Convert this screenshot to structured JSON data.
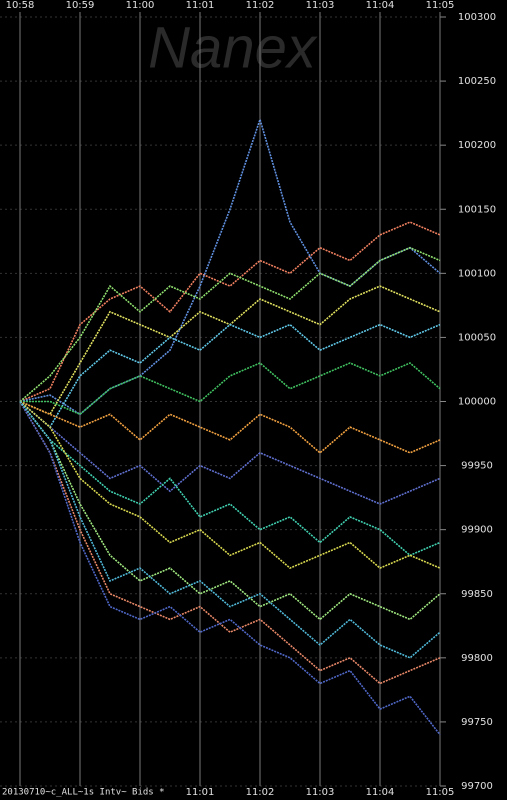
{
  "chart_data": {
    "type": "line",
    "watermark": "Nanex",
    "footer": "20130710~c_ALL~1s Intv~ Bids *",
    "x": [
      658,
      658.5,
      659,
      659.5,
      660,
      660.5,
      661,
      661.5,
      662,
      662.5,
      663,
      663.5,
      664,
      664.5,
      665
    ],
    "xlim": [
      658,
      665
    ],
    "xticks": [
      {
        "value": 658,
        "label": "10:58"
      },
      {
        "value": 659,
        "label": "10:59"
      },
      {
        "value": 660,
        "label": "11:00"
      },
      {
        "value": 661,
        "label": "11:01"
      },
      {
        "value": 662,
        "label": "11:02"
      },
      {
        "value": 663,
        "label": "11:03"
      },
      {
        "value": 664,
        "label": "11:04"
      },
      {
        "value": 665,
        "label": "11:05"
      }
    ],
    "ylim": [
      99700,
      100300
    ],
    "yticks": [
      99700,
      99750,
      99800,
      99850,
      99900,
      99950,
      100000,
      100050,
      100100,
      100150,
      100200,
      100250,
      100300
    ],
    "grid": true,
    "series": [
      {
        "color": "#f08060",
        "values": [
          100000,
          100010,
          100060,
          100080,
          100090,
          100070,
          100100,
          100090,
          100110,
          100100,
          100120,
          100110,
          100130,
          100140,
          100130
        ]
      },
      {
        "color": "#6090e0",
        "values": [
          100000,
          100005,
          99990,
          100010,
          100020,
          100040,
          100090,
          100150,
          100220,
          100140,
          100100,
          100090,
          100110,
          100120,
          100100
        ]
      },
      {
        "color": "#90e070",
        "values": [
          100000,
          100020,
          100050,
          100090,
          100070,
          100090,
          100080,
          100100,
          100090,
          100080,
          100100,
          100090,
          100110,
          100120,
          100110
        ]
      },
      {
        "color": "#e0e060",
        "values": [
          100000,
          99990,
          100030,
          100070,
          100060,
          100050,
          100070,
          100060,
          100080,
          100070,
          100060,
          100080,
          100090,
          100080,
          100070
        ]
      },
      {
        "color": "#60c8e8",
        "values": [
          100000,
          99980,
          100020,
          100040,
          100030,
          100050,
          100040,
          100060,
          100050,
          100060,
          100040,
          100050,
          100060,
          100050,
          100060
        ]
      },
      {
        "color": "#40c060",
        "values": [
          100000,
          100000,
          99990,
          100010,
          100020,
          100010,
          100000,
          100020,
          100030,
          100010,
          100020,
          100030,
          100020,
          100030,
          100010
        ]
      },
      {
        "color": "#f0a040",
        "values": [
          100000,
          99990,
          99980,
          99990,
          99970,
          99990,
          99980,
          99970,
          99990,
          99980,
          99960,
          99980,
          99970,
          99960,
          99970
        ]
      },
      {
        "color": "#6070d0",
        "values": [
          100000,
          99980,
          99960,
          99940,
          99950,
          99930,
          99950,
          99940,
          99960,
          99950,
          99940,
          99930,
          99920,
          99930,
          99940
        ]
      },
      {
        "color": "#40d0b0",
        "values": [
          100000,
          99970,
          99950,
          99930,
          99920,
          99940,
          99910,
          99920,
          99900,
          99910,
          99890,
          99910,
          99900,
          99880,
          99890
        ]
      },
      {
        "color": "#d8d850",
        "values": [
          100000,
          99980,
          99940,
          99920,
          99910,
          99890,
          99900,
          99880,
          99890,
          99870,
          99880,
          99890,
          99870,
          99880,
          99870
        ]
      },
      {
        "color": "#a0e880",
        "values": [
          100000,
          99970,
          99920,
          99880,
          99860,
          99870,
          99850,
          99860,
          99840,
          99850,
          99830,
          99850,
          99840,
          99830,
          99850
        ]
      },
      {
        "color": "#e88868",
        "values": [
          100000,
          99960,
          99900,
          99850,
          99840,
          99830,
          99840,
          99820,
          99830,
          99810,
          99790,
          99800,
          99780,
          99790,
          99800
        ]
      },
      {
        "color": "#5068c8",
        "values": [
          100000,
          99960,
          99890,
          99840,
          99830,
          99840,
          99820,
          99830,
          99810,
          99800,
          99780,
          99790,
          99760,
          99770,
          99740
        ]
      },
      {
        "color": "#50b8d8",
        "values": [
          100000,
          99970,
          99910,
          99860,
          99870,
          99850,
          99860,
          99840,
          99850,
          99830,
          99810,
          99830,
          99810,
          99800,
          99820
        ]
      }
    ]
  }
}
